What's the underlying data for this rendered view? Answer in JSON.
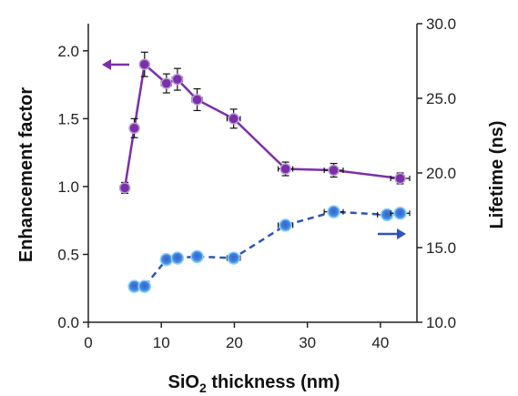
{
  "chart_data": {
    "type": "scatter",
    "xlabel_main": "SiO",
    "xlabel_sub": "2",
    "xlabel_tail": " thickness (nm)",
    "ylabel_left": "Enhancement factor",
    "ylabel_right": "Lifetime (ns)",
    "xlim": [
      0,
      45
    ],
    "ylim_left": [
      0.0,
      2.2
    ],
    "ylim_right": [
      10.0,
      30.0
    ],
    "x_ticks": [
      0,
      10,
      20,
      30,
      40
    ],
    "x_tick_labels": [
      "0",
      "10",
      "20",
      "30",
      "40"
    ],
    "y_left_ticks": [
      0.0,
      0.5,
      1.0,
      1.5,
      2.0
    ],
    "y_left_tick_labels": [
      "0.0",
      "0.5",
      "1.0",
      "1.5",
      "2.0"
    ],
    "y_right_ticks": [
      10.0,
      15.0,
      20.0,
      25.0,
      30.0
    ],
    "y_right_tick_labels": [
      "10.0",
      "15.0",
      "20.0",
      "25.0",
      "30.0"
    ],
    "grid": false,
    "series": [
      {
        "axis": "left",
        "color": "#7b2fa8",
        "line_style": "solid",
        "marker": "circle",
        "arrow_direction": "left",
        "points": [
          {
            "x": 5.0,
            "y": 0.99,
            "yerr": 0.04,
            "xerr": 0.6
          },
          {
            "x": 6.3,
            "y": 1.43,
            "yerr": 0.07,
            "xerr": 0.6
          },
          {
            "x": 7.7,
            "y": 1.9,
            "yerr": 0.09,
            "xerr": 0.6
          },
          {
            "x": 10.7,
            "y": 1.76,
            "yerr": 0.07,
            "xerr": 0.7
          },
          {
            "x": 12.2,
            "y": 1.79,
            "yerr": 0.08,
            "xerr": 0.7
          },
          {
            "x": 14.9,
            "y": 1.64,
            "yerr": 0.08,
            "xerr": 0.7
          },
          {
            "x": 19.9,
            "y": 1.5,
            "yerr": 0.07,
            "xerr": 0.9
          },
          {
            "x": 27.0,
            "y": 1.13,
            "yerr": 0.05,
            "xerr": 1.0
          },
          {
            "x": 33.6,
            "y": 1.12,
            "yerr": 0.05,
            "xerr": 1.3
          },
          {
            "x": 42.7,
            "y": 1.06,
            "yerr": 0.04,
            "xerr": 1.3
          }
        ]
      },
      {
        "axis": "right",
        "color": "#2a56b8",
        "line_style": "dashed",
        "marker": "circle",
        "arrow_direction": "right",
        "points": [
          {
            "x": 6.3,
            "y": 12.4,
            "xerr": 0.5
          },
          {
            "x": 7.7,
            "y": 12.4,
            "xerr": 0.5
          },
          {
            "x": 10.7,
            "y": 14.2,
            "xerr": 0.6
          },
          {
            "x": 12.2,
            "y": 14.3,
            "xerr": 0.6
          },
          {
            "x": 14.9,
            "y": 14.4,
            "xerr": 0.7
          },
          {
            "x": 19.9,
            "y": 14.3,
            "xerr": 0.9
          },
          {
            "x": 27.0,
            "y": 16.5,
            "xerr": 1.0
          },
          {
            "x": 33.6,
            "y": 17.4,
            "xerr": 1.3
          },
          {
            "x": 40.9,
            "y": 17.2,
            "xerr": 1.3
          },
          {
            "x": 42.7,
            "y": 17.3,
            "xerr": 1.3
          }
        ]
      }
    ]
  }
}
